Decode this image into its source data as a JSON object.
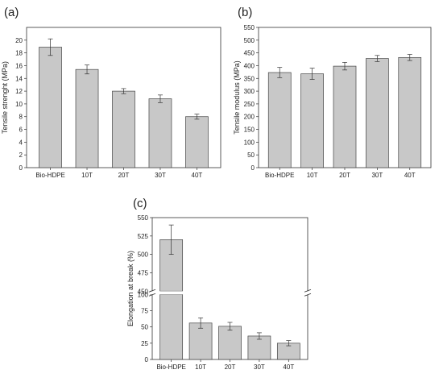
{
  "chart_data": [
    {
      "type": "bar",
      "panel": "(a)",
      "categories": [
        "Bio-HDPE",
        "10T",
        "20T",
        "30T",
        "40T"
      ],
      "values": [
        18.9,
        15.4,
        12.0,
        10.8,
        8.0
      ],
      "errors": [
        1.3,
        0.7,
        0.4,
        0.6,
        0.4
      ],
      "title": "",
      "xlabel": "",
      "ylabel": "Tensile strenght (MPa)",
      "ylim": [
        0,
        22
      ],
      "yticks": [
        0,
        2,
        4,
        6,
        8,
        10,
        12,
        14,
        16,
        18,
        20
      ],
      "grid": false,
      "bar_color": "#c8c8c8"
    },
    {
      "type": "bar",
      "panel": "(b)",
      "categories": [
        "Bio-HDPE",
        "10T",
        "20T",
        "30T",
        "40T"
      ],
      "values": [
        373,
        368,
        398,
        428,
        432
      ],
      "errors": [
        20,
        22,
        15,
        12,
        12
      ],
      "title": "",
      "xlabel": "",
      "ylabel": "Tensile modulus (MPa)",
      "ylim": [
        0,
        550
      ],
      "yticks": [
        0,
        50,
        100,
        150,
        200,
        250,
        300,
        350,
        400,
        450,
        500,
        550
      ],
      "grid": false,
      "bar_color": "#c8c8c8"
    },
    {
      "type": "bar",
      "panel": "(c)",
      "categories": [
        "Bio-HDPE",
        "10T",
        "20T",
        "30T",
        "40T"
      ],
      "values": [
        520,
        56,
        51,
        36,
        25
      ],
      "errors": [
        20,
        8,
        6,
        5,
        4
      ],
      "title": "",
      "xlabel": "",
      "ylabel": "Elongation at break (%)",
      "ylim": [
        0,
        550
      ],
      "axis_break": [
        100,
        450
      ],
      "yticks": [
        0,
        25,
        50,
        75,
        100,
        450,
        475,
        500,
        525,
        550
      ],
      "grid": false,
      "bar_color": "#c8c8c8"
    }
  ]
}
